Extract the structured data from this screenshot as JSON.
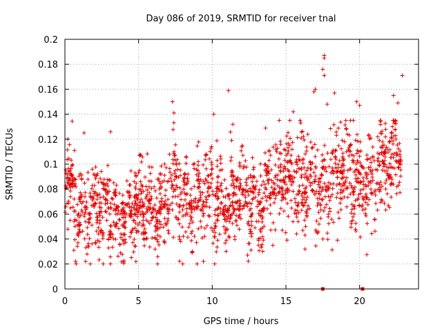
{
  "chart_data": {
    "type": "scatter",
    "title": "Day 086 of 2019, SRMTID for receiver tnal",
    "xlabel": "GPS time / hours",
    "ylabel": "SRMTID / TECUs",
    "xlim": [
      0,
      24
    ],
    "ylim": [
      0,
      0.2
    ],
    "x_ticks": [
      0,
      5,
      10,
      15,
      20
    ],
    "x_tick_labels": [
      "0",
      "5",
      "10",
      "15",
      "20"
    ],
    "y_ticks": [
      0,
      0.02,
      0.04,
      0.06,
      0.08,
      0.1,
      0.12,
      0.14,
      0.16,
      0.18,
      0.2
    ],
    "y_tick_labels": [
      "0",
      "0.02",
      "0.04",
      "0.06",
      "0.08",
      "0.1",
      "0.12",
      "0.14",
      "0.16",
      "0.18",
      "0.2"
    ],
    "grid": true,
    "marker": "+",
    "color": "#e00000",
    "profile": [
      {
        "x": 0.0,
        "mean": 0.075,
        "spread": 0.022
      },
      {
        "x": 1.0,
        "mean": 0.07,
        "spread": 0.024
      },
      {
        "x": 2.0,
        "mean": 0.068,
        "spread": 0.02
      },
      {
        "x": 3.0,
        "mean": 0.062,
        "spread": 0.02
      },
      {
        "x": 4.0,
        "mean": 0.058,
        "spread": 0.018
      },
      {
        "x": 5.0,
        "mean": 0.062,
        "spread": 0.02
      },
      {
        "x": 6.0,
        "mean": 0.066,
        "spread": 0.02
      },
      {
        "x": 7.0,
        "mean": 0.07,
        "spread": 0.022
      },
      {
        "x": 8.0,
        "mean": 0.074,
        "spread": 0.022
      },
      {
        "x": 9.0,
        "mean": 0.07,
        "spread": 0.024
      },
      {
        "x": 10.0,
        "mean": 0.072,
        "spread": 0.025
      },
      {
        "x": 11.0,
        "mean": 0.068,
        "spread": 0.024
      },
      {
        "x": 12.0,
        "mean": 0.07,
        "spread": 0.024
      },
      {
        "x": 13.0,
        "mean": 0.072,
        "spread": 0.022
      },
      {
        "x": 14.0,
        "mean": 0.078,
        "spread": 0.024
      },
      {
        "x": 15.0,
        "mean": 0.09,
        "spread": 0.025
      },
      {
        "x": 16.0,
        "mean": 0.088,
        "spread": 0.024
      },
      {
        "x": 17.0,
        "mean": 0.082,
        "spread": 0.024
      },
      {
        "x": 18.0,
        "mean": 0.092,
        "spread": 0.025
      },
      {
        "x": 19.0,
        "mean": 0.095,
        "spread": 0.024
      },
      {
        "x": 20.0,
        "mean": 0.092,
        "spread": 0.025
      },
      {
        "x": 21.0,
        "mean": 0.085,
        "spread": 0.024
      },
      {
        "x": 22.0,
        "mean": 0.105,
        "spread": 0.022
      },
      {
        "x": 22.8,
        "mean": 0.115,
        "spread": 0.02
      }
    ],
    "n_points": 1900,
    "seed": 86,
    "outliers": [
      {
        "x": 0.2,
        "y": 0.12
      },
      {
        "x": 1.3,
        "y": 0.125
      },
      {
        "x": 1.4,
        "y": 0.022
      },
      {
        "x": 3.1,
        "y": 0.126
      },
      {
        "x": 7.3,
        "y": 0.15
      },
      {
        "x": 7.4,
        "y": 0.141
      },
      {
        "x": 9.4,
        "y": 0.022
      },
      {
        "x": 10.1,
        "y": 0.14
      },
      {
        "x": 11.1,
        "y": 0.159
      },
      {
        "x": 15.5,
        "y": 0.142
      },
      {
        "x": 16.9,
        "y": 0.158
      },
      {
        "x": 17.0,
        "y": 0.16
      },
      {
        "x": 17.6,
        "y": 0.187
      },
      {
        "x": 17.6,
        "y": 0.185
      },
      {
        "x": 17.5,
        "y": 0.176
      },
      {
        "x": 17.6,
        "y": 0.171
      },
      {
        "x": 17.8,
        "y": 0.148
      },
      {
        "x": 18.3,
        "y": 0.157
      },
      {
        "x": 19.8,
        "y": 0.15
      },
      {
        "x": 20.0,
        "y": 0.147
      },
      {
        "x": 22.3,
        "y": 0.155
      },
      {
        "x": 22.6,
        "y": 0.149
      },
      {
        "x": 22.9,
        "y": 0.171
      },
      {
        "x": 16.3,
        "y": 0.032
      },
      {
        "x": 18.5,
        "y": 0.039
      },
      {
        "x": 2.6,
        "y": 0.02
      }
    ],
    "zero_markers": [
      {
        "x": 17.5,
        "y": 0
      },
      {
        "x": 20.2,
        "y": 0
      }
    ]
  }
}
